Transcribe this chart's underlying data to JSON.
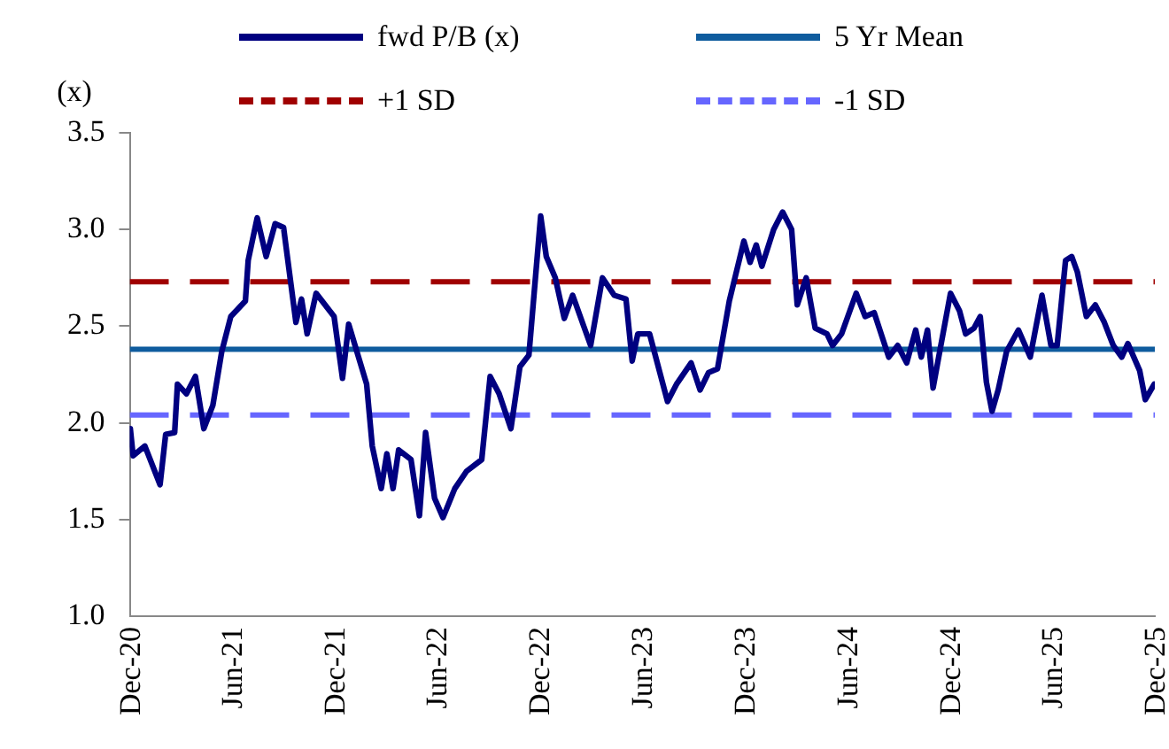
{
  "chart_data": {
    "type": "line",
    "ylabel": "(x)",
    "legend": "top",
    "xlim": [
      "2020-12-01",
      "2025-12-01"
    ],
    "xticks": [
      {
        "value": "2020-12-01",
        "label": "Dec-20"
      },
      {
        "value": "2021-06-01",
        "label": "Jun-21"
      },
      {
        "value": "2021-12-01",
        "label": "Dec-21"
      },
      {
        "value": "2022-06-01",
        "label": "Jun-22"
      },
      {
        "value": "2022-12-01",
        "label": "Dec-22"
      },
      {
        "value": "2023-06-01",
        "label": "Jun-23"
      },
      {
        "value": "2023-12-01",
        "label": "Dec-23"
      },
      {
        "value": "2024-06-01",
        "label": "Jun-24"
      },
      {
        "value": "2024-12-01",
        "label": "Dec-24"
      },
      {
        "value": "2025-06-01",
        "label": "Jun-25"
      },
      {
        "value": "2025-12-01",
        "label": "Dec-25"
      }
    ],
    "ylim": [
      1.0,
      3.5
    ],
    "yticks": [
      {
        "value": 1.0,
        "label": "1.0"
      },
      {
        "value": 1.5,
        "label": "1.5"
      },
      {
        "value": 2.0,
        "label": "2.0"
      },
      {
        "value": 2.5,
        "label": "2.5"
      },
      {
        "value": 3.0,
        "label": "3.0"
      },
      {
        "value": 3.5,
        "label": "3.5"
      }
    ],
    "grid": false,
    "series": [
      {
        "name": "fwd P/B (x)",
        "color": "#000080",
        "line_style": "solid",
        "x": [
          "2020-12-02",
          "2020-12-07",
          "2020-12-28",
          "2021-01-24",
          "2021-02-03",
          "2021-02-19",
          "2021-02-24",
          "2021-03-12",
          "2021-03-28",
          "2021-04-12",
          "2021-04-28",
          "2021-05-14",
          "2021-05-30",
          "2021-06-25",
          "2021-06-30",
          "2021-07-16",
          "2021-08-01",
          "2021-08-17",
          "2021-09-01",
          "2021-09-23",
          "2021-10-03",
          "2021-10-13",
          "2021-10-29",
          "2021-11-30",
          "2021-12-15",
          "2021-12-26",
          "2022-01-27",
          "2022-02-06",
          "2022-02-22",
          "2022-03-04",
          "2022-03-15",
          "2022-03-25",
          "2022-04-16",
          "2022-05-01",
          "2022-05-12",
          "2022-05-28",
          "2022-06-12",
          "2022-07-03",
          "2022-07-24",
          "2022-08-20",
          "2022-09-04",
          "2022-09-20",
          "2022-10-11",
          "2022-10-27",
          "2022-11-12",
          "2022-12-03",
          "2022-12-13",
          "2022-12-29",
          "2023-01-14",
          "2023-01-29",
          "2023-03-02",
          "2023-03-23",
          "2023-04-13",
          "2023-05-04",
          "2023-05-15",
          "2023-05-25",
          "2023-06-15",
          "2023-07-17",
          "2023-08-02",
          "2023-08-28",
          "2023-09-13",
          "2023-09-28",
          "2023-10-14",
          "2023-11-04",
          "2023-11-30",
          "2023-12-11",
          "2023-12-22",
          "2024-01-01",
          "2024-01-22",
          "2024-02-07",
          "2024-02-23",
          "2024-03-04",
          "2024-03-20",
          "2024-04-05",
          "2024-04-26",
          "2024-05-06",
          "2024-05-22",
          "2024-06-17",
          "2024-07-03",
          "2024-07-19",
          "2024-08-14",
          "2024-08-30",
          "2024-09-15",
          "2024-10-01",
          "2024-10-11",
          "2024-10-22",
          "2024-11-01",
          "2024-11-11",
          "2024-12-02",
          "2024-12-18",
          "2024-12-29",
          "2025-01-13",
          "2025-01-24",
          "2025-02-04",
          "2025-02-14",
          "2025-02-25",
          "2025-03-12",
          "2025-04-02",
          "2025-04-23",
          "2025-05-14",
          "2025-05-30",
          "2025-06-10",
          "2025-06-25",
          "2025-07-06",
          "2025-07-16",
          "2025-08-01",
          "2025-08-17",
          "2025-09-02",
          "2025-09-18",
          "2025-10-03",
          "2025-10-14",
          "2025-11-04",
          "2025-11-14",
          "2025-11-30"
        ],
        "values": [
          1.97,
          1.83,
          1.88,
          1.68,
          1.94,
          1.95,
          2.2,
          2.15,
          2.24,
          1.97,
          2.09,
          2.37,
          2.55,
          2.63,
          2.84,
          3.06,
          2.86,
          3.03,
          3.01,
          2.52,
          2.64,
          2.46,
          2.67,
          2.55,
          2.23,
          2.51,
          2.2,
          1.88,
          1.66,
          1.84,
          1.66,
          1.86,
          1.81,
          1.52,
          1.95,
          1.61,
          1.51,
          1.66,
          1.75,
          1.81,
          2.24,
          2.15,
          1.97,
          2.29,
          2.35,
          3.07,
          2.86,
          2.75,
          2.54,
          2.66,
          2.4,
          2.75,
          2.66,
          2.64,
          2.32,
          2.46,
          2.46,
          2.11,
          2.2,
          2.31,
          2.17,
          2.26,
          2.28,
          2.63,
          2.94,
          2.83,
          2.92,
          2.81,
          3.0,
          3.09,
          3.0,
          2.61,
          2.75,
          2.49,
          2.46,
          2.4,
          2.46,
          2.67,
          2.55,
          2.57,
          2.34,
          2.4,
          2.31,
          2.48,
          2.34,
          2.48,
          2.18,
          2.34,
          2.67,
          2.58,
          2.46,
          2.49,
          2.55,
          2.21,
          2.06,
          2.17,
          2.37,
          2.48,
          2.34,
          2.66,
          2.4,
          2.4,
          2.84,
          2.86,
          2.78,
          2.55,
          2.61,
          2.52,
          2.4,
          2.34,
          2.41,
          2.27,
          2.12,
          2.2
        ]
      }
    ],
    "ref_lines": [
      {
        "axis": "y",
        "value": 2.38,
        "label": "5 Yr Mean",
        "color": "#0f5c9e",
        "line_style": "solid"
      },
      {
        "axis": "y",
        "value": 2.73,
        "label": "+1 SD",
        "color": "#a00000",
        "line_style": "dashed"
      },
      {
        "axis": "y",
        "value": 2.04,
        "label": "-1 SD",
        "color": "#6666ff",
        "line_style": "dashed"
      }
    ]
  }
}
